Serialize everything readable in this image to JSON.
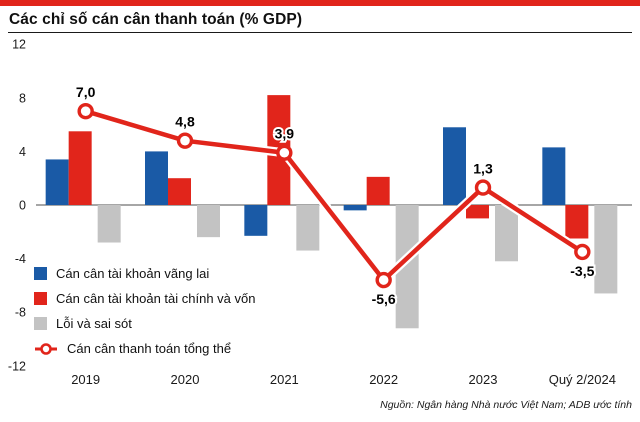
{
  "accent_color": "#e1251b",
  "chart_data": {
    "type": "bar",
    "title": "Các chỉ số cán cân thanh toán (% GDP)",
    "categories": [
      "2019",
      "2020",
      "2021",
      "2022",
      "2023",
      "Quý 2/2024"
    ],
    "series": [
      {
        "name": "Cán cân tài khoản vãng lai",
        "type": "bar",
        "color": "#1a5aa6",
        "values": [
          3.4,
          4.0,
          -2.3,
          -0.4,
          5.8,
          4.3
        ]
      },
      {
        "name": "Cán cân tài khoản tài chính và vốn",
        "type": "bar",
        "color": "#e1251b",
        "values": [
          5.5,
          2.0,
          8.2,
          2.1,
          -1.0,
          -2.5
        ]
      },
      {
        "name": "Lỗi và sai sót",
        "type": "bar",
        "color": "#c3c3c3",
        "values": [
          -2.8,
          -2.4,
          -3.4,
          -9.2,
          -4.2,
          -6.6
        ]
      },
      {
        "name": "Cán cân thanh toán tổng thể",
        "type": "line",
        "color": "#e1251b",
        "values": [
          7.0,
          4.8,
          3.9,
          -5.6,
          1.3,
          -3.5
        ],
        "labels": [
          "7,0",
          "4,8",
          "3,9",
          "-5,6",
          "1,3",
          "-3,5"
        ]
      }
    ],
    "ylim": [
      -12,
      12
    ],
    "yticks": [
      12,
      8,
      4,
      0,
      -4,
      -8,
      -12
    ],
    "grid": false,
    "legend_position": "bottom-left-inside"
  },
  "source": "Nguồn: Ngân hàng Nhà nước Việt Nam; ADB ước tính"
}
